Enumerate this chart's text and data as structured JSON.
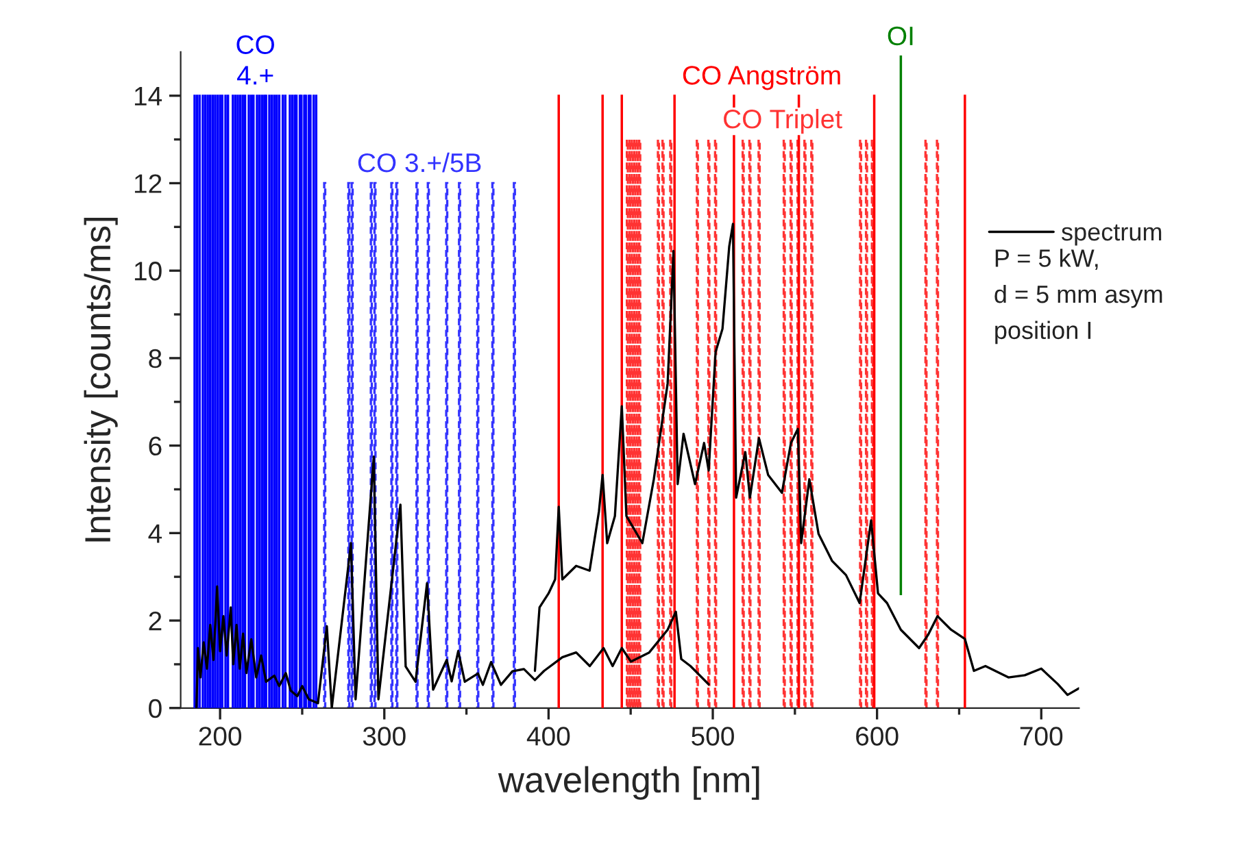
{
  "chart_data": {
    "type": "line",
    "xlabel": "wavelength [nm]",
    "ylabel": "Intensity [counts/ms]",
    "xlim": [
      176,
      723
    ],
    "ylim": [
      0,
      15
    ],
    "xticks": [
      200,
      {
        "value": 250,
        "label": null
      },
      300,
      {
        "value": 350,
        "label": null
      },
      400,
      {
        "value": 450,
        "label": null
      },
      500,
      {
        "value": 550,
        "label": null
      },
      600,
      {
        "value": 650,
        "label": null
      },
      700
    ],
    "yticks": [
      0,
      {
        "value": 1,
        "label": null
      },
      2,
      {
        "value": 3,
        "label": null
      },
      4,
      {
        "value": 5,
        "label": null
      },
      6,
      {
        "value": 7,
        "label": null
      },
      8,
      {
        "value": 9,
        "label": null
      },
      10,
      {
        "value": 11,
        "label": null
      },
      12,
      {
        "value": 13,
        "label": null
      },
      14
    ],
    "grid": false,
    "legend": "right",
    "annotations": [
      "P = 5 kW,",
      "d = 5 mm asym",
      "position I"
    ],
    "series": [
      {
        "name": "spectrum",
        "color": "#000000",
        "line_style": "solid",
        "x": [
          185.6,
          186.5,
          188,
          190,
          192,
          194,
          196,
          198.2,
          200,
          202,
          204,
          206.5,
          208,
          210,
          212,
          214,
          216,
          219,
          222,
          225,
          228,
          233,
          236,
          240,
          243,
          247,
          250,
          254,
          259.6,
          265,
          268,
          279.7,
          282.5,
          293.6,
          296.4,
          309.8,
          313,
          319,
          326,
          329.7,
          338,
          341,
          345,
          349,
          357,
          360,
          365,
          371,
          378,
          385,
          391.7,
          397.3,
          408.4,
          416.8,
          425.1,
          433.5,
          439,
          444.6,
          450.2,
          461.3,
          472.5,
          477.5,
          480.8,
          486.4,
          497.5
        ],
        "values": [
          0,
          1.37,
          0.7,
          1.5,
          0.9,
          1.9,
          1.1,
          2.78,
          1.3,
          2.1,
          1.2,
          2.3,
          1.0,
          1.9,
          0.9,
          1.7,
          0.8,
          1.57,
          0.7,
          1.2,
          0.6,
          0.74,
          0.5,
          0.8,
          0.4,
          0.27,
          0.5,
          0.2,
          0.11,
          1.87,
          0,
          3.77,
          0.2,
          5.75,
          0.2,
          4.65,
          0.95,
          0.6,
          2.85,
          0.42,
          1.1,
          0.61,
          1.3,
          0.6,
          0.79,
          0.53,
          1.05,
          0.53,
          0.84,
          0.89,
          0.64,
          0.85,
          1.16,
          1.27,
          0.96,
          1.37,
          0.96,
          1.37,
          1.06,
          1.27,
          1.79,
          2.2,
          1.12,
          0.96,
          0.54
        ]
      },
      {
        "color": "#000000",
        "line_style": "solid",
        "x": [
          391.7,
          394.5,
          400,
          404,
          406.2,
          408.4,
          416.8,
          425,
          430.7,
          432.9,
          435.7,
          440.4,
          444.6,
          447.4,
          457.1,
          464.1,
          472.5,
          476.1,
          478.6,
          482.2,
          489.2,
          494.7,
          497.5,
          501.7,
          505.9,
          510,
          512.3,
          514.2,
          519.8,
          522.6,
          528.1,
          533.7,
          542.1,
          547.6,
          551.8,
          553.8,
          558.8,
          564.4,
          572.7,
          581.1,
          589.4,
          596.4,
          600.6,
          606.1,
          614.5,
          625.6,
          631.2,
          636.8,
          645.1,
          653.5,
          659,
          666,
          680,
          690,
          700,
          710,
          716,
          723
        ],
        "values": [
          0.85,
          2.3,
          2.62,
          2.94,
          4.6,
          2.94,
          3.25,
          3.14,
          4.5,
          5.33,
          3.77,
          4.39,
          6.9,
          4.39,
          3.77,
          5.23,
          7.42,
          10.45,
          5.12,
          6.27,
          5.12,
          6.06,
          5.43,
          8.14,
          8.67,
          10.55,
          11.07,
          4.81,
          5.85,
          4.81,
          6.17,
          5.33,
          4.92,
          6.06,
          6.38,
          3.77,
          5.23,
          3.98,
          3.36,
          3.04,
          2.4,
          4.29,
          2.62,
          2.4,
          1.79,
          1.37,
          1.68,
          2.1,
          1.79,
          1.58,
          0.85,
          0.96,
          0.7,
          0.75,
          0.9,
          0.55,
          0.3,
          0.45
        ]
      },
      {
        "name": "CO\n4.+",
        "type": "bar",
        "color": "#0000ff",
        "line_style": "solid",
        "x": [
          184.5,
          186,
          187.5,
          189.5,
          191,
          192.5,
          194,
          195.5,
          197,
          198.5,
          200,
          201.3,
          203.3,
          204.8,
          207.8,
          209.3,
          210.8,
          212.3,
          213.8,
          215.2,
          217.5,
          219,
          220.3,
          222.5,
          224,
          225.5,
          227,
          228,
          230,
          231.5,
          233,
          234.5,
          236,
          238.2,
          239.7,
          242.5,
          244,
          245.5,
          246.5,
          248.6,
          249.5,
          251.3,
          252.2,
          254,
          255,
          257,
          258.5
        ],
        "values": [
          14,
          14,
          14,
          14,
          14,
          14,
          14,
          14,
          14,
          14,
          14,
          14,
          14,
          14,
          14,
          14,
          14,
          14,
          14,
          14,
          14,
          14,
          14,
          14,
          14,
          14,
          14,
          14,
          14,
          14,
          14,
          14,
          14,
          14,
          14,
          14,
          14,
          14,
          14,
          14,
          14,
          14,
          14,
          14,
          14,
          14,
          14
        ]
      },
      {
        "name": "CO 3.+/5B",
        "type": "bar",
        "color": "#3333ff",
        "line_style": "dashed",
        "x": [
          263.7,
          278.4,
          280.4,
          292.1,
          294.3,
          304.6,
          307.6,
          319.9,
          326.8,
          338,
          345.8,
          356.9,
          366.1,
          379.2
        ],
        "values": [
          12,
          12,
          12,
          12,
          12,
          12,
          12,
          12,
          12,
          12,
          12,
          12,
          12,
          12
        ]
      },
      {
        "name": "CO Angström",
        "type": "bar",
        "color": "#ff0000",
        "line_style": "solid",
        "x": [
          406.2,
          432.9,
          444.6,
          476.7,
          512.9,
          552.4,
          598.3,
          653.5
        ],
        "values": [
          14,
          14,
          14,
          14,
          14,
          14,
          14,
          14
        ]
      },
      {
        "name": "CO Triplet",
        "type": "bar",
        "color": "#ff3333",
        "line_style": "dashed",
        "x": [
          448,
          449.5,
          451,
          452.5,
          454,
          455.5,
          466.9,
          469.7,
          474.4,
          490.6,
          497.6,
          501.7,
          518.5,
          522.6,
          528.2,
          543.5,
          547.7,
          551.9,
          556.1,
          560.3,
          590,
          593.6,
          597.2,
          629.8,
          636.8
        ],
        "values": [
          13,
          13,
          13,
          13,
          13,
          13,
          13,
          13,
          13,
          13,
          13,
          13,
          13,
          13,
          13,
          13,
          13,
          13,
          13,
          13,
          13,
          13,
          13,
          13,
          13
        ]
      },
      {
        "name": "OI",
        "type": "bar",
        "color": "#008000",
        "line_style": "solid",
        "x": [
          614.5
        ],
        "base": [
          2.6
        ],
        "values": [
          12.3
        ]
      }
    ]
  }
}
